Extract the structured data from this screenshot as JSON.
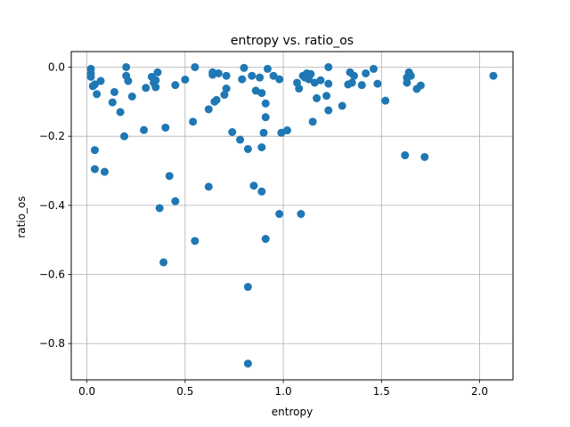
{
  "chart_data": {
    "type": "scatter",
    "title": "entropy vs. ratio_os",
    "xlabel": "entropy",
    "ylabel": "ratio_os",
    "xlim": [
      -0.08,
      2.17
    ],
    "ylim": [
      -0.905,
      0.045
    ],
    "xticks": [
      0.0,
      0.5,
      1.0,
      1.5,
      2.0
    ],
    "xtick_labels": [
      "0.0",
      "0.5",
      "1.0",
      "1.5",
      "2.0"
    ],
    "yticks": [
      0.0,
      -0.2,
      -0.4,
      -0.6,
      -0.8
    ],
    "ytick_labels": [
      "0.0",
      "−0.2",
      "−0.4",
      "−0.6",
      "−0.8"
    ],
    "grid": true,
    "color": "#1f77b4",
    "points": [
      [
        0.02,
        -0.005
      ],
      [
        0.02,
        -0.018
      ],
      [
        0.02,
        -0.028
      ],
      [
        0.03,
        -0.055
      ],
      [
        0.04,
        -0.05
      ],
      [
        0.05,
        -0.078
      ],
      [
        0.07,
        -0.04
      ],
      [
        0.04,
        -0.24
      ],
      [
        0.04,
        -0.295
      ],
      [
        0.09,
        -0.303
      ],
      [
        0.13,
        -0.102
      ],
      [
        0.14,
        -0.072
      ],
      [
        0.17,
        -0.13
      ],
      [
        0.19,
        -0.2
      ],
      [
        0.2,
        -0.0
      ],
      [
        0.2,
        -0.025
      ],
      [
        0.21,
        -0.04
      ],
      [
        0.23,
        -0.085
      ],
      [
        0.29,
        -0.182
      ],
      [
        0.3,
        -0.06
      ],
      [
        0.33,
        -0.028
      ],
      [
        0.34,
        -0.045
      ],
      [
        0.35,
        -0.038
      ],
      [
        0.35,
        -0.058
      ],
      [
        0.36,
        -0.015
      ],
      [
        0.37,
        -0.408
      ],
      [
        0.39,
        -0.565
      ],
      [
        0.4,
        -0.175
      ],
      [
        0.42,
        -0.315
      ],
      [
        0.45,
        -0.388
      ],
      [
        0.45,
        -0.052
      ],
      [
        0.5,
        -0.036
      ],
      [
        0.54,
        -0.158
      ],
      [
        0.55,
        -0.503
      ],
      [
        0.55,
        0.0
      ],
      [
        0.62,
        -0.122
      ],
      [
        0.62,
        -0.346
      ],
      [
        0.64,
        -0.015
      ],
      [
        0.64,
        -0.022
      ],
      [
        0.65,
        -0.1
      ],
      [
        0.66,
        -0.095
      ],
      [
        0.67,
        -0.018
      ],
      [
        0.7,
        -0.08
      ],
      [
        0.71,
        -0.025
      ],
      [
        0.71,
        -0.062
      ],
      [
        0.74,
        -0.188
      ],
      [
        0.78,
        -0.21
      ],
      [
        0.79,
        -0.035
      ],
      [
        0.8,
        -0.002
      ],
      [
        0.82,
        -0.636
      ],
      [
        0.82,
        -0.858
      ],
      [
        0.82,
        -0.237
      ],
      [
        0.84,
        -0.025
      ],
      [
        0.85,
        -0.343
      ],
      [
        0.86,
        -0.068
      ],
      [
        0.88,
        -0.03
      ],
      [
        0.89,
        -0.075
      ],
      [
        0.89,
        -0.232
      ],
      [
        0.89,
        -0.36
      ],
      [
        0.9,
        -0.19
      ],
      [
        0.91,
        -0.145
      ],
      [
        0.91,
        -0.105
      ],
      [
        0.91,
        -0.497
      ],
      [
        0.92,
        -0.005
      ],
      [
        0.95,
        -0.025
      ],
      [
        0.98,
        -0.035
      ],
      [
        0.98,
        -0.425
      ],
      [
        0.99,
        -0.19
      ],
      [
        1.02,
        -0.183
      ],
      [
        1.07,
        -0.045
      ],
      [
        1.08,
        -0.062
      ],
      [
        1.09,
        -0.425
      ],
      [
        1.1,
        -0.025
      ],
      [
        1.11,
        -0.03
      ],
      [
        1.12,
        -0.018
      ],
      [
        1.13,
        -0.035
      ],
      [
        1.14,
        -0.02
      ],
      [
        1.15,
        -0.158
      ],
      [
        1.16,
        -0.045
      ],
      [
        1.17,
        -0.09
      ],
      [
        1.19,
        -0.038
      ],
      [
        1.22,
        -0.083
      ],
      [
        1.23,
        -0.125
      ],
      [
        1.23,
        0.0
      ],
      [
        1.23,
        -0.048
      ],
      [
        1.3,
        -0.112
      ],
      [
        1.33,
        -0.05
      ],
      [
        1.34,
        -0.015
      ],
      [
        1.35,
        -0.045
      ],
      [
        1.36,
        -0.025
      ],
      [
        1.4,
        -0.052
      ],
      [
        1.42,
        -0.018
      ],
      [
        1.46,
        -0.005
      ],
      [
        1.48,
        -0.048
      ],
      [
        1.52,
        -0.097
      ],
      [
        1.62,
        -0.255
      ],
      [
        1.63,
        -0.03
      ],
      [
        1.63,
        -0.045
      ],
      [
        1.64,
        -0.015
      ],
      [
        1.65,
        -0.025
      ],
      [
        1.68,
        -0.063
      ],
      [
        1.7,
        -0.053
      ],
      [
        1.72,
        -0.26
      ],
      [
        2.07,
        -0.025
      ]
    ]
  }
}
